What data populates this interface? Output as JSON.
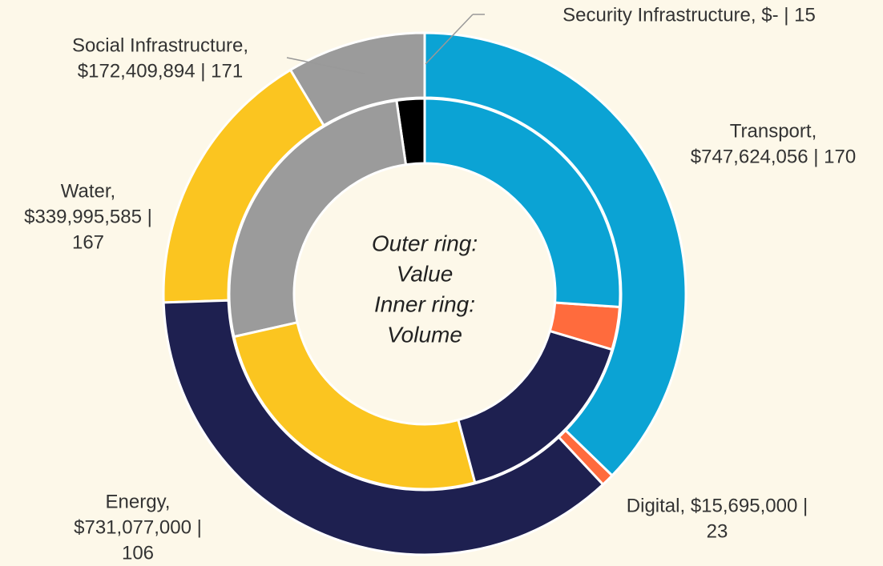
{
  "chart_data": {
    "type": "donut",
    "categories": [
      "Transport",
      "Digital",
      "Energy",
      "Water",
      "Social Infrastructure",
      "Security Infrastructure"
    ],
    "colors": [
      "#0ba3d4",
      "#ff6b3d",
      "#1e2050",
      "#fbc520",
      "#9b9b9b",
      "#000000"
    ],
    "series": [
      {
        "name": "Value",
        "values": [
          747624056,
          15695000,
          731077000,
          339995585,
          172409894,
          0
        ]
      },
      {
        "name": "Volume",
        "values": [
          170,
          23,
          106,
          167,
          171,
          15
        ]
      }
    ],
    "data_labels": [
      [
        "Transport,",
        "$747,624,056  | 170"
      ],
      [
        "Digital,  $15,695,000  |",
        "23"
      ],
      [
        "Energy,",
        "$731,077,000  |",
        "106"
      ],
      [
        "Water,",
        "$339,995,585  |",
        "167"
      ],
      [
        "Social Infrastructure,",
        "$172,409,894  | 171"
      ],
      [
        "Security Infrastructure,  $-    | 15"
      ]
    ],
    "center_text": [
      "Outer ring:",
      "Inner ring:"
    ]
  }
}
